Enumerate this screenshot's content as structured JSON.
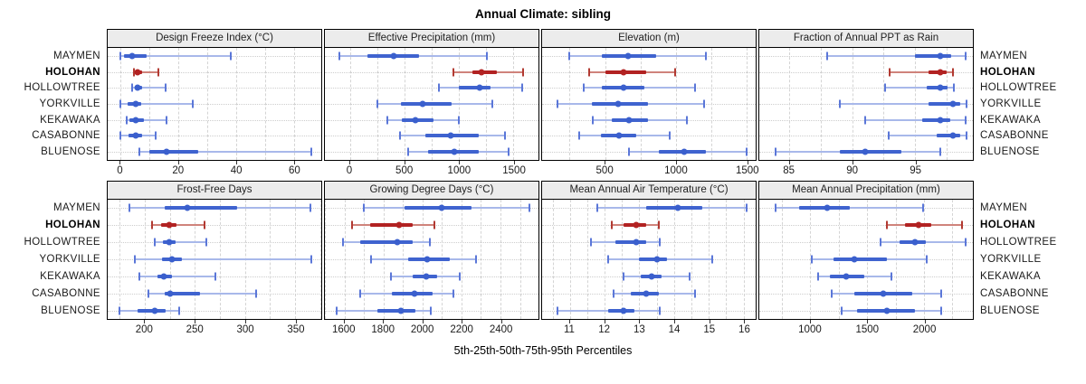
{
  "title": "Annual Climate: sibling",
  "xlabel": "5th-25th-50th-75th-95th Percentiles",
  "sites": [
    "MAYMEN",
    "HOLOHAN",
    "HOLLOWTREE",
    "YORKVILLE",
    "KEKAWAKA",
    "CASABONNE",
    "BLUENOSE"
  ],
  "highlight_site": "HOLOHAN",
  "percentiles": [
    "5th",
    "25th",
    "50th",
    "75th",
    "95th"
  ],
  "colors": {
    "normal_dot": "#3a5fcd",
    "normal_box": "#3f63cf",
    "normal_whisker": "#a8b8ea",
    "normal_cap": "#5b77d8",
    "highlight_dot": "#b22222",
    "highlight_box": "#b22222",
    "highlight_whisker": "#cf837b",
    "highlight_cap": "#b23a32",
    "strip_bg": "#ececec",
    "grid": "#d4d4d4"
  },
  "chart_data": {
    "type": "dot-whisker-trellis",
    "note": "values per site are [5th,25th,50th,75th,95th] percentiles",
    "rows": [
      {
        "panels": [
          {
            "title": "Design Freeze Index (°C)",
            "xlim": [
              -4.5,
              69.5
            ],
            "ticks": [
              0,
              20,
              40,
              60
            ],
            "gridlines": [
              0,
              10,
              20,
              30,
              40,
              50,
              60
            ],
            "series": [
              {
                "site": "MAYMEN",
                "values": [
                  0,
                  1,
                  4,
                  9,
                  38
                ]
              },
              {
                "site": "HOLOHAN",
                "values": [
                  4.5,
                  5.2,
                  6,
                  7.5,
                  13
                ]
              },
              {
                "site": "HOLLOWTREE",
                "values": [
                  4,
                  4.8,
                  6,
                  7.5,
                  15.5
                ]
              },
              {
                "site": "YORKVILLE",
                "values": [
                  0,
                  2.5,
                  5.3,
                  7,
                  25
                ]
              },
              {
                "site": "KEKAWAKA",
                "values": [
                  2,
                  3,
                  5.3,
                  8,
                  16
                ]
              },
              {
                "site": "CASABONNE",
                "values": [
                  0,
                  2.7,
                  5.3,
                  7.3,
                  12
                ]
              },
              {
                "site": "BLUENOSE",
                "values": [
                  6.5,
                  10,
                  16,
                  27,
                  66
                ]
              }
            ]
          },
          {
            "title": "Effective Precipitation (mm)",
            "xlim": [
              -230,
              1730
            ],
            "ticks": [
              0,
              500,
              1000,
              1500
            ],
            "gridlines": [
              0,
              250,
              500,
              750,
              1000,
              1250,
              1500
            ],
            "series": [
              {
                "site": "MAYMEN",
                "values": [
                  -100,
                  160,
                  400,
                  630,
                  1260
                ]
              },
              {
                "site": "HOLOHAN",
                "values": [
                  950,
                  1120,
                  1210,
                  1350,
                  1590
                ]
              },
              {
                "site": "HOLLOWTREE",
                "values": [
                  820,
                  1000,
                  1190,
                  1290,
                  1580
                ]
              },
              {
                "site": "YORKVILLE",
                "values": [
                  250,
                  470,
                  670,
                  930,
                  1310
                ]
              },
              {
                "site": "KEKAWAKA",
                "values": [
                  340,
                  480,
                  600,
                  770,
                  1000
                ]
              },
              {
                "site": "CASABONNE",
                "values": [
                  460,
                  690,
                  925,
                  1180,
                  1420
                ]
              },
              {
                "site": "BLUENOSE",
                "values": [
                  530,
                  715,
                  960,
                  1180,
                  1455
                ]
              }
            ]
          },
          {
            "title": "Elevation (m)",
            "xlim": [
              55,
              1565
            ],
            "ticks": [
              500,
              1000,
              1500
            ],
            "gridlines": [
              250,
              500,
              750,
              1000,
              1250,
              1500
            ],
            "series": [
              {
                "site": "MAYMEN",
                "values": [
                  250,
                  480,
                  660,
                  860,
                  1210
                ]
              },
              {
                "site": "HOLOHAN",
                "values": [
                  390,
                  500,
                  630,
                  790,
                  995
                ]
              },
              {
                "site": "HOLLOWTREE",
                "values": [
                  350,
                  480,
                  630,
                  780,
                  1135
                ]
              },
              {
                "site": "YORKVILLE",
                "values": [
                  165,
                  405,
                  590,
                  805,
                  1200
                ]
              },
              {
                "site": "KEKAWAKA",
                "values": [
                  415,
                  550,
                  670,
                  805,
                  1080
                ]
              },
              {
                "site": "CASABONNE",
                "values": [
                  320,
                  470,
                  600,
                  720,
                  960
                ]
              },
              {
                "site": "BLUENOSE",
                "values": [
                  670,
                  880,
                  1060,
                  1210,
                  1500
                ]
              }
            ]
          },
          {
            "title": "Fraction of Annual PPT as Rain",
            "xlim": [
              82.6,
              99.6
            ],
            "ticks": [
              85,
              90,
              95
            ],
            "gridlines": [
              85,
              87.5,
              90,
              92.5,
              95,
              97.5
            ],
            "series": [
              {
                "site": "MAYMEN",
                "values": [
                  88,
                  95,
                  97,
                  97.9,
                  99
                ]
              },
              {
                "site": "HOLOHAN",
                "values": [
                  93,
                  96.1,
                  97,
                  97.5,
                  98
                ]
              },
              {
                "site": "HOLLOWTREE",
                "values": [
                  92.6,
                  95.9,
                  97,
                  97.6,
                  98.1
                ]
              },
              {
                "site": "YORKVILLE",
                "values": [
                  89,
                  96.1,
                  98,
                  98.6,
                  99.1
                ]
              },
              {
                "site": "KEKAWAKA",
                "values": [
                  91,
                  95.6,
                  97,
                  97.8,
                  99
                ]
              },
              {
                "site": "CASABONNE",
                "values": [
                  92.9,
                  96.7,
                  98,
                  98.6,
                  99.1
                ]
              },
              {
                "site": "BLUENOSE",
                "values": [
                  83.9,
                  89,
                  91,
                  93.9,
                  97
                ]
              }
            ]
          }
        ]
      },
      {
        "panels": [
          {
            "title": "Frost-Free Days",
            "xlim": [
              163,
              376
            ],
            "ticks": [
              200,
              250,
              300,
              350
            ],
            "gridlines": [
              175,
              200,
              225,
              250,
              275,
              300,
              325,
              350,
              375
            ],
            "series": [
              {
                "site": "MAYMEN",
                "values": [
                  185,
                  220,
                  242,
                  292,
                  365
                ]
              },
              {
                "site": "HOLOHAN",
                "values": [
                  207,
                  216,
                  224,
                  232,
                  260
                ]
              },
              {
                "site": "HOLLOWTREE",
                "values": [
                  210,
                  218,
                  224,
                  231,
                  261
                ]
              },
              {
                "site": "YORKVILLE",
                "values": [
                  190,
                  217,
                  227,
                  237,
                  366
                ]
              },
              {
                "site": "KEKAWAKA",
                "values": [
                  195,
                  213,
                  219,
                  227,
                  270
                ]
              },
              {
                "site": "CASABONNE",
                "values": [
                  204,
                  220,
                  225,
                  255,
                  311
                ]
              },
              {
                "site": "BLUENOSE",
                "values": [
                  175,
                  193,
                  210,
                  221,
                  234
                ]
              }
            ]
          },
          {
            "title": "Growing Degree Days (°C)",
            "xlim": [
              1500,
              2595
            ],
            "ticks": [
              1600,
              1800,
              2000,
              2200,
              2400
            ],
            "gridlines": [
              1500,
              1600,
              1700,
              1800,
              1900,
              2000,
              2100,
              2200,
              2300,
              2400,
              2500
            ],
            "series": [
              {
                "site": "MAYMEN",
                "values": [
                  1700,
                  1910,
                  2100,
                  2250,
                  2550
                ]
              },
              {
                "site": "HOLOHAN",
                "values": [
                  1640,
                  1730,
                  1880,
                  1950,
                  2060
                ]
              },
              {
                "site": "HOLLOWTREE",
                "values": [
                  1595,
                  1680,
                  1870,
                  1950,
                  2040
                ]
              },
              {
                "site": "YORKVILLE",
                "values": [
                  1735,
                  1925,
                  2025,
                  2140,
                  2275
                ]
              },
              {
                "site": "KEKAWAKA",
                "values": [
                  1840,
                  1950,
                  2020,
                  2075,
                  2190
                ]
              },
              {
                "site": "CASABONNE",
                "values": [
                  1680,
                  1845,
                  1960,
                  2050,
                  2160
                ]
              },
              {
                "site": "BLUENOSE",
                "values": [
                  1560,
                  1770,
                  1890,
                  1965,
                  2045
                ]
              }
            ]
          },
          {
            "title": "Mean Annual Air Temperature (°C)",
            "xlim": [
              10.2,
              16.35
            ],
            "ticks": [
              11,
              12,
              13,
              14,
              15,
              16
            ],
            "gridlines": [
              10.5,
              11,
              11.5,
              12,
              12.5,
              13,
              13.5,
              14,
              14.5,
              15,
              15.5,
              16
            ],
            "series": [
              {
                "site": "MAYMEN",
                "values": [
                  11.8,
                  13.2,
                  14.1,
                  14.8,
                  16.1
                ]
              },
              {
                "site": "HOLOHAN",
                "values": [
                  12.2,
                  12.55,
                  12.9,
                  13.2,
                  13.55
                ]
              },
              {
                "site": "HOLLOWTREE",
                "values": [
                  11.6,
                  12.3,
                  12.9,
                  13.2,
                  13.6
                ]
              },
              {
                "site": "YORKVILLE",
                "values": [
                  12.1,
                  13.0,
                  13.5,
                  13.8,
                  15.1
                ]
              },
              {
                "site": "KEKAWAKA",
                "values": [
                  12.55,
                  13.05,
                  13.35,
                  13.65,
                  14.45
                ]
              },
              {
                "site": "CASABONNE",
                "values": [
                  12.25,
                  12.75,
                  13.2,
                  13.55,
                  14.6
                ]
              },
              {
                "site": "BLUENOSE",
                "values": [
                  10.65,
                  12.1,
                  12.55,
                  12.85,
                  13.6
                ]
              }
            ]
          },
          {
            "title": "Mean Annual Precipitation (mm)",
            "xlim": [
              550,
              2430
            ],
            "ticks": [
              1000,
              1500,
              2000
            ],
            "gridlines": [
              750,
              1000,
              1250,
              1500,
              1750,
              2000,
              2250
            ],
            "series": [
              {
                "site": "MAYMEN",
                "values": [
                  695,
                  900,
                  1150,
                  1350,
                  1995
                ]
              },
              {
                "site": "HOLOHAN",
                "values": [
                  1670,
                  1830,
                  1950,
                  2065,
                  2335
                ]
              },
              {
                "site": "HOLLOWTREE",
                "values": [
                  1615,
                  1785,
                  1920,
                  2015,
                  2365
                ]
              },
              {
                "site": "YORKVILLE",
                "values": [
                  1010,
                  1200,
                  1385,
                  1670,
                  2025
                ]
              },
              {
                "site": "KEKAWAKA",
                "values": [
                  1065,
                  1175,
                  1315,
                  1475,
                  1710
                ]
              },
              {
                "site": "CASABONNE",
                "values": [
                  1190,
                  1385,
                  1640,
                  1895,
                  2155
                ]
              },
              {
                "site": "BLUENOSE",
                "values": [
                  1275,
                  1410,
                  1670,
                  1920,
                  2155
                ]
              }
            ]
          }
        ]
      }
    ]
  }
}
